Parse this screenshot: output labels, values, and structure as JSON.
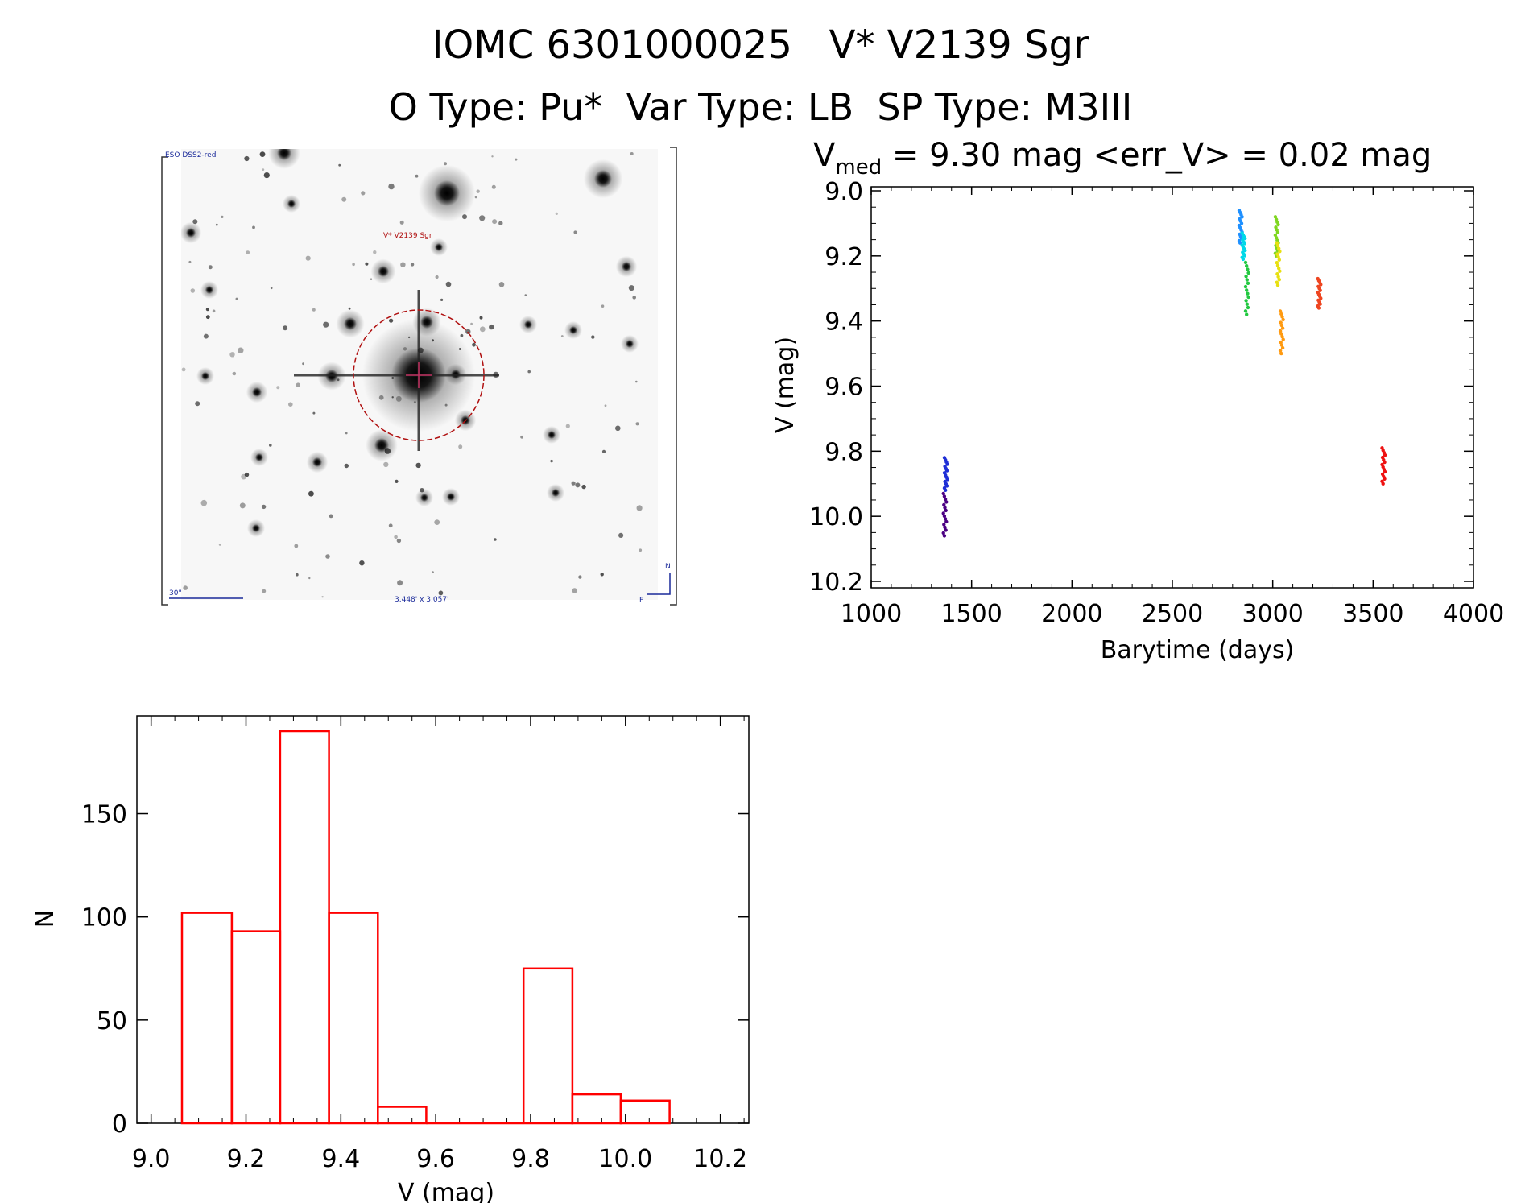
{
  "header": {
    "title_line1": "IOMC 6301000025   V* V2139 Sgr",
    "title_line2": "O Type: Pu*  Var Type: LB  SP Type: M3III"
  },
  "finder": {
    "survey_label": "ESO DSS2-red",
    "object_label": "V* V2139 Sgr",
    "scale_label": "30\"",
    "fov_label": "3.448' x 3.057'",
    "north_label": "N",
    "east_label": "E"
  },
  "chart_data": [
    {
      "type": "scatter",
      "title_prefix": "V",
      "title_sub": "med",
      "title_rest": " = 9.30 mag <err_V> = 0.02 mag",
      "xlabel": "Barytime (days)",
      "ylabel": "V (mag)",
      "xlim": [
        1000,
        4000
      ],
      "ylim": [
        10.2,
        9.0
      ],
      "y_inverted": true,
      "x_ticks": [
        "1000",
        "1500",
        "2000",
        "2500",
        "3000",
        "3500",
        "4000"
      ],
      "y_ticks": [
        "9.0",
        "9.2",
        "9.4",
        "9.6",
        "9.8",
        "10.0",
        "10.2"
      ],
      "groups": [
        {
          "x": 1367,
          "y_min": 9.93,
          "y_max": 10.06,
          "color": "#4b0082"
        },
        {
          "x": 1372,
          "y_min": 9.82,
          "y_max": 9.92,
          "color": "#1f2fd6"
        },
        {
          "x": 2840,
          "y_min": 9.06,
          "y_max": 9.16,
          "color": "#1e90ff"
        },
        {
          "x": 2855,
          "y_min": 9.13,
          "y_max": 9.21,
          "color": "#00d8e8"
        },
        {
          "x": 2872,
          "y_min": 9.22,
          "y_max": 9.38,
          "color": "#22c840"
        },
        {
          "x": 3020,
          "y_min": 9.08,
          "y_max": 9.2,
          "color": "#7fd620"
        },
        {
          "x": 3028,
          "y_min": 9.16,
          "y_max": 9.29,
          "color": "#e8e010"
        },
        {
          "x": 3045,
          "y_min": 9.37,
          "y_max": 9.5,
          "color": "#ff9a10"
        },
        {
          "x": 3232,
          "y_min": 9.27,
          "y_max": 9.36,
          "color": "#ee4520"
        },
        {
          "x": 3552,
          "y_min": 9.79,
          "y_max": 9.9,
          "color": "#ee1111"
        }
      ]
    },
    {
      "type": "bar",
      "histogram": true,
      "xlabel": "V (mag)",
      "ylabel": "N",
      "xlim": [
        8.97,
        10.26
      ],
      "ylim": [
        0,
        190
      ],
      "x_ticks": [
        "9.0",
        "9.2",
        "9.4",
        "9.6",
        "9.8",
        "10.0",
        "10.2"
      ],
      "y_ticks": [
        "0",
        "50",
        "100",
        "150"
      ],
      "bins": [
        {
          "x0": 9.065,
          "x1": 9.17,
          "count": 102
        },
        {
          "x0": 9.17,
          "x1": 9.272,
          "count": 93
        },
        {
          "x0": 9.272,
          "x1": 9.375,
          "count": 190
        },
        {
          "x0": 9.375,
          "x1": 9.478,
          "count": 102
        },
        {
          "x0": 9.478,
          "x1": 9.58,
          "count": 8
        },
        {
          "x0": 9.58,
          "x1": 9.683,
          "count": 0
        },
        {
          "x0": 9.683,
          "x1": 9.785,
          "count": 0
        },
        {
          "x0": 9.785,
          "x1": 9.888,
          "count": 75
        },
        {
          "x0": 9.888,
          "x1": 9.99,
          "count": 14
        },
        {
          "x0": 9.99,
          "x1": 10.093,
          "count": 11
        }
      ],
      "bar_color": "#ff0000"
    }
  ]
}
